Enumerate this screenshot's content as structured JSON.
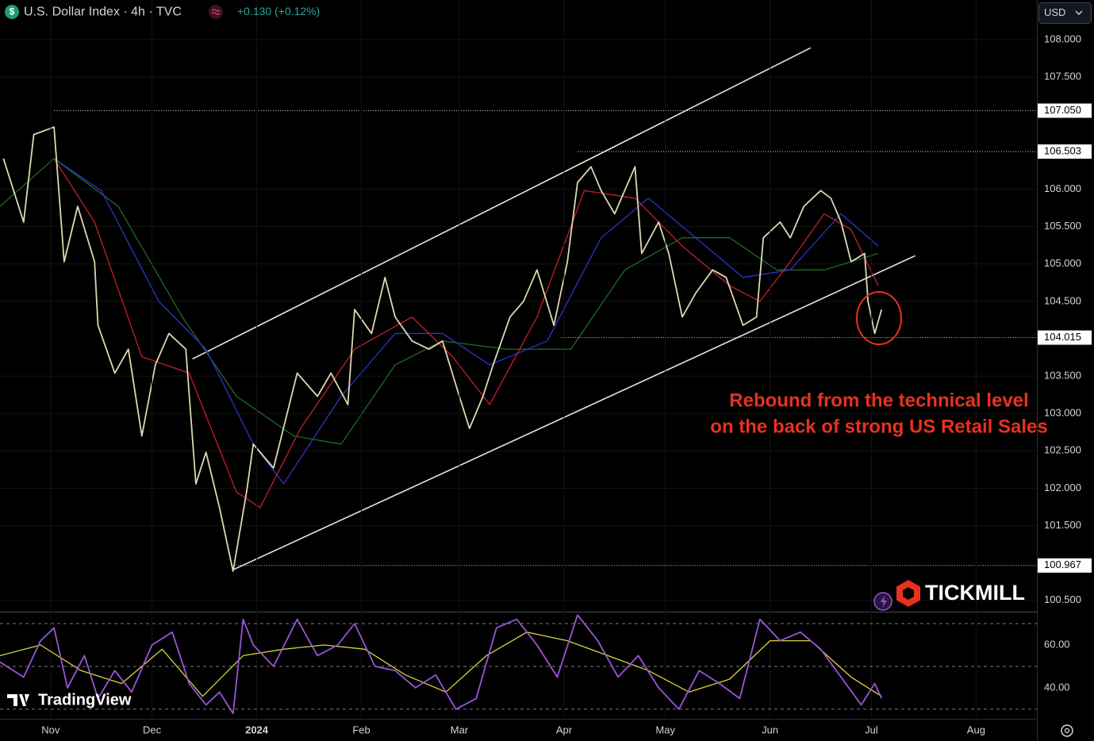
{
  "header": {
    "icon": "$",
    "symbol": "U.S. Dollar Index · 4h · TVC",
    "change": "+0.130 (+0.12%)",
    "currency": "USD"
  },
  "branding": {
    "broker": "TICKMILL",
    "platform": "TradingView"
  },
  "chart_data": [
    {
      "type": "line",
      "xlim": [
        -15,
        292
      ],
      "ylim": [
        100.36,
        108.53
      ],
      "yticks": [
        {
          "value": 108,
          "label": "108.000"
        },
        {
          "value": 107.5,
          "label": "107.500"
        },
        {
          "value": 106,
          "label": "106.000"
        },
        {
          "value": 105.5,
          "label": "105.500"
        },
        {
          "value": 105,
          "label": "105.000"
        },
        {
          "value": 104.5,
          "label": "104.500"
        },
        {
          "value": 103.5,
          "label": "103.500"
        },
        {
          "value": 103,
          "label": "103.000"
        },
        {
          "value": 102.5,
          "label": "102.500"
        },
        {
          "value": 102,
          "label": "102.000"
        },
        {
          "value": 101.5,
          "label": "101.500"
        },
        {
          "value": 100.5,
          "label": "100.500"
        }
      ],
      "grid": true,
      "series": [
        {
          "color": "#ddd8b0",
          "x": [
            -14,
            -8,
            -5,
            1,
            4,
            8,
            13,
            14,
            19,
            23,
            27,
            31,
            35,
            40,
            43,
            46,
            50,
            54,
            58,
            60,
            66,
            73,
            79,
            83,
            88,
            90,
            95,
            99,
            102,
            107,
            112,
            116,
            121,
            124,
            128,
            131,
            136,
            140,
            144,
            149,
            153,
            156,
            160,
            163,
            167,
            173,
            175,
            180,
            183,
            187,
            191,
            196,
            200,
            205,
            209,
            211,
            216,
            219,
            223,
            228,
            231,
            234,
            237,
            241,
            242,
            244,
            246
          ],
          "values": [
            106.41,
            105.56,
            106.73,
            106.83,
            105.03,
            105.77,
            105.03,
            104.18,
            103.54,
            103.86,
            102.7,
            103.65,
            104.07,
            103.86,
            102.06,
            102.48,
            101.74,
            100.89,
            101.95,
            102.59,
            102.27,
            103.54,
            103.23,
            103.54,
            103.12,
            104.39,
            104.07,
            104.82,
            104.29,
            103.97,
            103.86,
            103.97,
            103.23,
            102.8,
            103.23,
            103.65,
            104.29,
            104.5,
            104.92,
            104.18,
            105.03,
            106.09,
            106.3,
            105.98,
            105.67,
            106.3,
            105.14,
            105.56,
            105.14,
            104.29,
            104.61,
            104.92,
            104.82,
            104.18,
            104.29,
            105.35,
            105.56,
            105.35,
            105.77,
            105.98,
            105.88,
            105.56,
            105.03,
            105.14,
            104.5,
            104.07,
            104.39
          ]
        },
        {
          "color": "#c3202b",
          "x": [
            1,
            13,
            27,
            41,
            55,
            62,
            74,
            90,
            107,
            119,
            130,
            144,
            158,
            173,
            187,
            201,
            210,
            219,
            229,
            237,
            245
          ],
          "values": [
            106.41,
            105.56,
            103.76,
            103.54,
            101.95,
            101.74,
            102.8,
            103.86,
            104.29,
            103.76,
            103.12,
            104.29,
            105.98,
            105.88,
            105.24,
            104.71,
            104.5,
            105.03,
            105.67,
            105.46,
            104.71
          ]
        },
        {
          "color": "#2a35c8",
          "x": [
            1,
            15,
            32,
            46,
            60,
            69,
            86,
            102,
            116,
            130,
            147,
            163,
            177,
            191,
            205,
            219,
            234,
            245
          ],
          "values": [
            106.41,
            105.98,
            104.5,
            103.86,
            102.59,
            102.06,
            103.23,
            104.07,
            104.07,
            103.65,
            103.97,
            105.35,
            105.88,
            105.35,
            104.82,
            104.92,
            105.67,
            105.24
          ]
        },
        {
          "color": "#1f6b22",
          "x": [
            -15,
            1,
            20,
            39,
            55,
            72,
            86,
            102,
            116,
            135,
            154,
            170,
            187,
            201,
            215,
            229,
            245
          ],
          "values": [
            105.77,
            106.41,
            105.77,
            104.29,
            103.23,
            102.7,
            102.59,
            103.65,
            103.97,
            103.86,
            103.86,
            104.92,
            105.35,
            105.35,
            104.92,
            104.92,
            105.14
          ]
        }
      ],
      "levels": [
        {
          "x": 1,
          "value": 107.05,
          "label": "107.050"
        },
        {
          "x": 156,
          "value": 106.503,
          "label": "106.503"
        },
        {
          "x": 151,
          "value": 104.015,
          "label": "104.015"
        },
        {
          "x": 54,
          "value": 100.967,
          "label": "100.967"
        }
      ],
      "trendlines": [
        {
          "x": [
            42,
            225
          ],
          "values": [
            103.73,
            107.89
          ]
        },
        {
          "x": [
            54,
            256
          ],
          "values": [
            100.91,
            105.11
          ]
        }
      ],
      "annotation": [
        "Rebound from the technical level",
        "on the back of strong US Retail Sales"
      ]
    },
    {
      "type": "line",
      "xlim": [
        -15,
        292
      ],
      "ylim": [
        25.9,
        74.8
      ],
      "yticks": [
        {
          "value": 60,
          "label": "60.00"
        },
        {
          "value": 40,
          "label": "40.00"
        }
      ],
      "levels": [
        70,
        50,
        30
      ],
      "xticks": [
        {
          "value": 0,
          "label": "Nov"
        },
        {
          "value": 30,
          "label": "Dec"
        },
        {
          "value": 61,
          "label": "2024"
        },
        {
          "value": 92,
          "label": "Feb"
        },
        {
          "value": 121,
          "label": "Mar"
        },
        {
          "value": 152,
          "label": "Apr"
        },
        {
          "value": 182,
          "label": "May"
        },
        {
          "value": 213,
          "label": "Jun"
        },
        {
          "value": 243,
          "label": "Jul"
        },
        {
          "value": 274,
          "label": "Aug"
        }
      ],
      "series": [
        {
          "color": "#9a55d6",
          "x": [
            -15,
            -8,
            -3,
            1,
            5,
            10,
            14,
            19,
            24,
            30,
            36,
            41,
            46,
            50,
            54,
            57,
            60,
            66,
            73,
            79,
            85,
            90,
            96,
            102,
            108,
            114,
            120,
            126,
            132,
            138,
            144,
            150,
            156,
            162,
            168,
            174,
            180,
            186,
            192,
            198,
            204,
            210,
            216,
            222,
            228,
            234,
            240,
            244,
            246
          ],
          "values": [
            52,
            45,
            62,
            68,
            40,
            55,
            35,
            48,
            38,
            60,
            66,
            42,
            32,
            38,
            28,
            72,
            60,
            50,
            72,
            55,
            60,
            70,
            50,
            48,
            40,
            46,
            30,
            35,
            68,
            72,
            60,
            45,
            74,
            62,
            45,
            55,
            40,
            30,
            48,
            42,
            35,
            72,
            62,
            66,
            58,
            45,
            32,
            42,
            35
          ]
        },
        {
          "color": "#d6d63c",
          "x": [
            -15,
            -3,
            9,
            21,
            33,
            45,
            57,
            69,
            81,
            93,
            105,
            117,
            129,
            141,
            153,
            165,
            177,
            189,
            201,
            213,
            225,
            237,
            246
          ],
          "values": [
            55,
            60,
            48,
            42,
            58,
            36,
            55,
            58,
            60,
            58,
            46,
            38,
            55,
            66,
            62,
            55,
            48,
            38,
            44,
            62,
            62,
            45,
            36
          ]
        }
      ]
    }
  ]
}
